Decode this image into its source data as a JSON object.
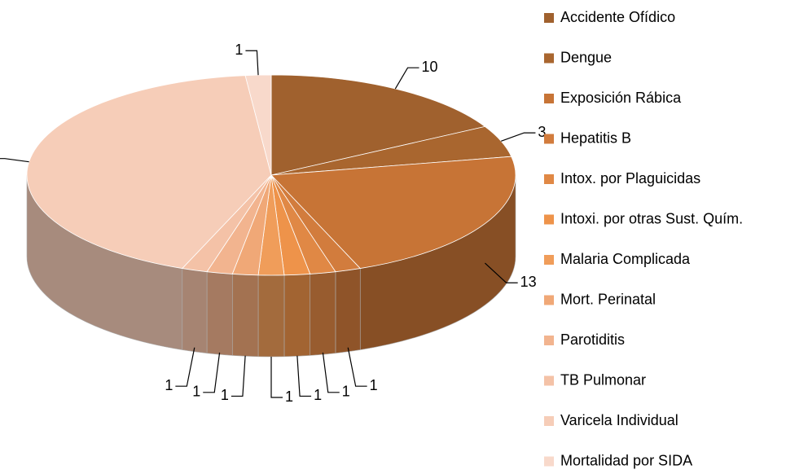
{
  "chart_data": {
    "type": "pie",
    "categories": [
      "Accidente Ofídico",
      "Dengue",
      "Exposición Rábica",
      "Hepatitis B",
      "Intox. por Plaguicidas",
      "Intoxi. por otras Sust. Quím.",
      "Malaria Complicada",
      "Mort. Perinatal",
      "Parotiditis",
      "TB Pulmonar",
      "Varicela Individual",
      "Mortalidad por SIDA"
    ],
    "values": [
      10,
      3,
      13,
      1,
      1,
      1,
      1,
      1,
      1,
      1,
      25,
      1
    ],
    "colors": [
      "#a0612e",
      "#a9662f",
      "#c77436",
      "#d27c3d",
      "#e08845",
      "#ee934a",
      "#f09d5a",
      "#f0a877",
      "#f2b48f",
      "#f4c2a7",
      "#f6cdb8",
      "#f8d9cb"
    ],
    "legend": "right"
  }
}
